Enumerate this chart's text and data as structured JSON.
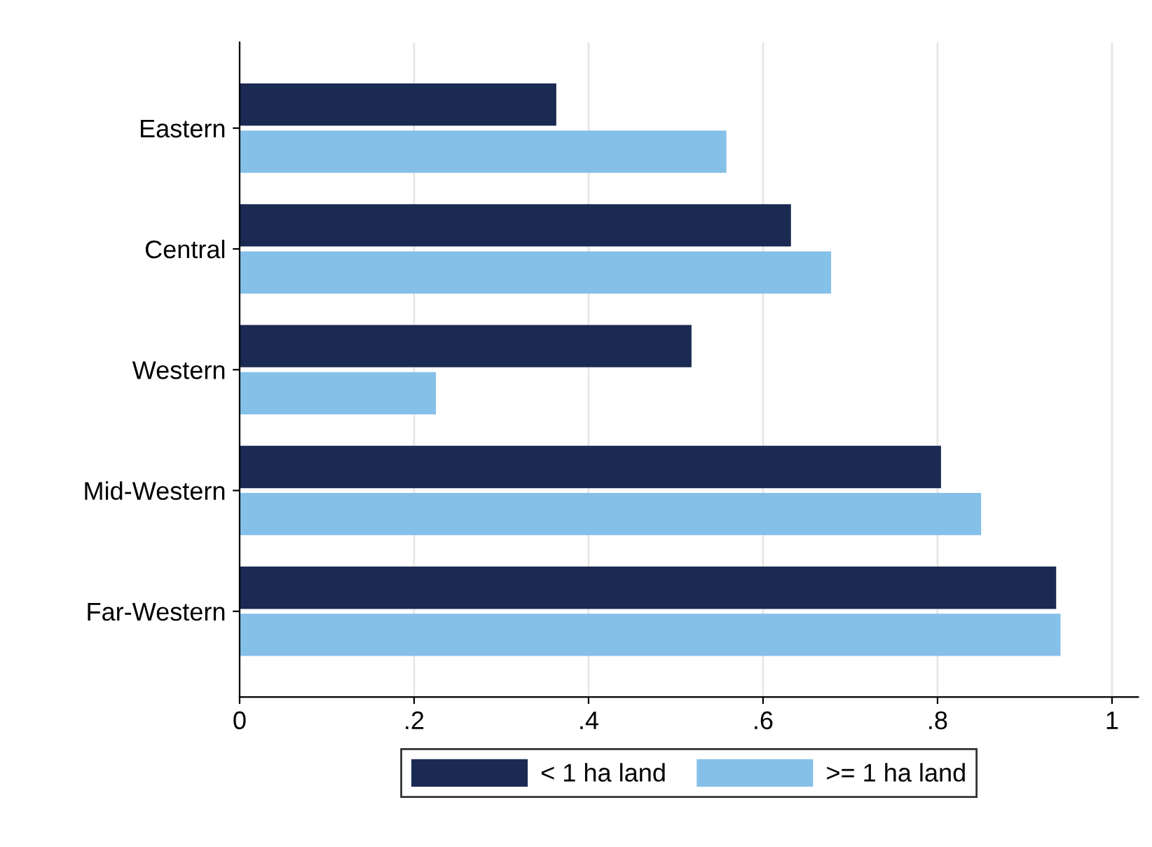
{
  "chart_data": {
    "type": "bar",
    "orientation": "horizontal",
    "categories": [
      "Eastern",
      "Central",
      "Western",
      "Mid-Western",
      "Far-Western"
    ],
    "series": [
      {
        "name": "< 1 ha land",
        "color": "#1a2a52",
        "values": [
          0.363,
          0.632,
          0.518,
          0.804,
          0.936
        ]
      },
      {
        "name": ">= 1 ha land",
        "color": "#85c0e9",
        "values": [
          0.558,
          0.678,
          0.225,
          0.85,
          0.941
        ]
      }
    ],
    "xlim": [
      0,
      1.03
    ],
    "xticks": [
      0,
      {
        "value": 0.2,
        "label": ".2"
      },
      {
        "value": 0.4,
        "label": ".4"
      },
      {
        "value": 0.6,
        "label": ".6"
      },
      {
        "value": 0.8,
        "label": ".8"
      },
      1
    ],
    "grid": "x",
    "legend": "bottom"
  }
}
